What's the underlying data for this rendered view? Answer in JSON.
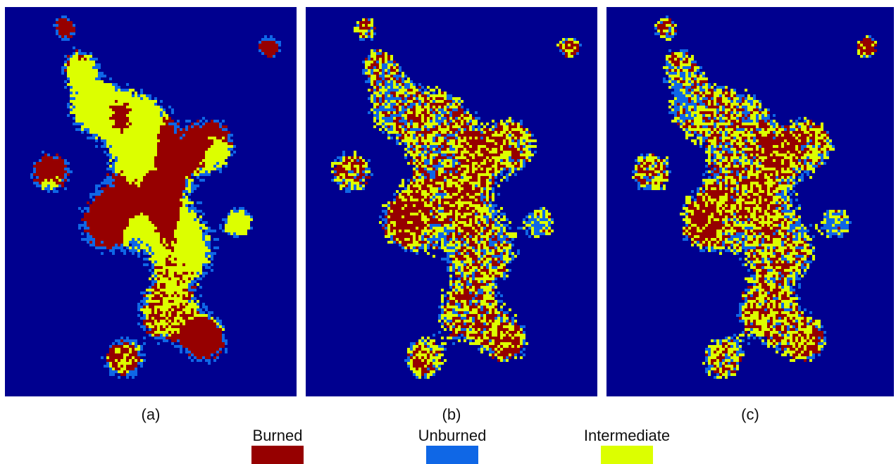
{
  "panels": [
    {
      "label": "(a)"
    },
    {
      "label": "(b)"
    },
    {
      "label": "(c)"
    }
  ],
  "legend": {
    "items": [
      {
        "label": "Burned",
        "color": "#960000"
      },
      {
        "label": "Unburned",
        "color": "#0f67e6"
      },
      {
        "label": "Intermediate",
        "color": "#dcff00"
      }
    ]
  }
}
